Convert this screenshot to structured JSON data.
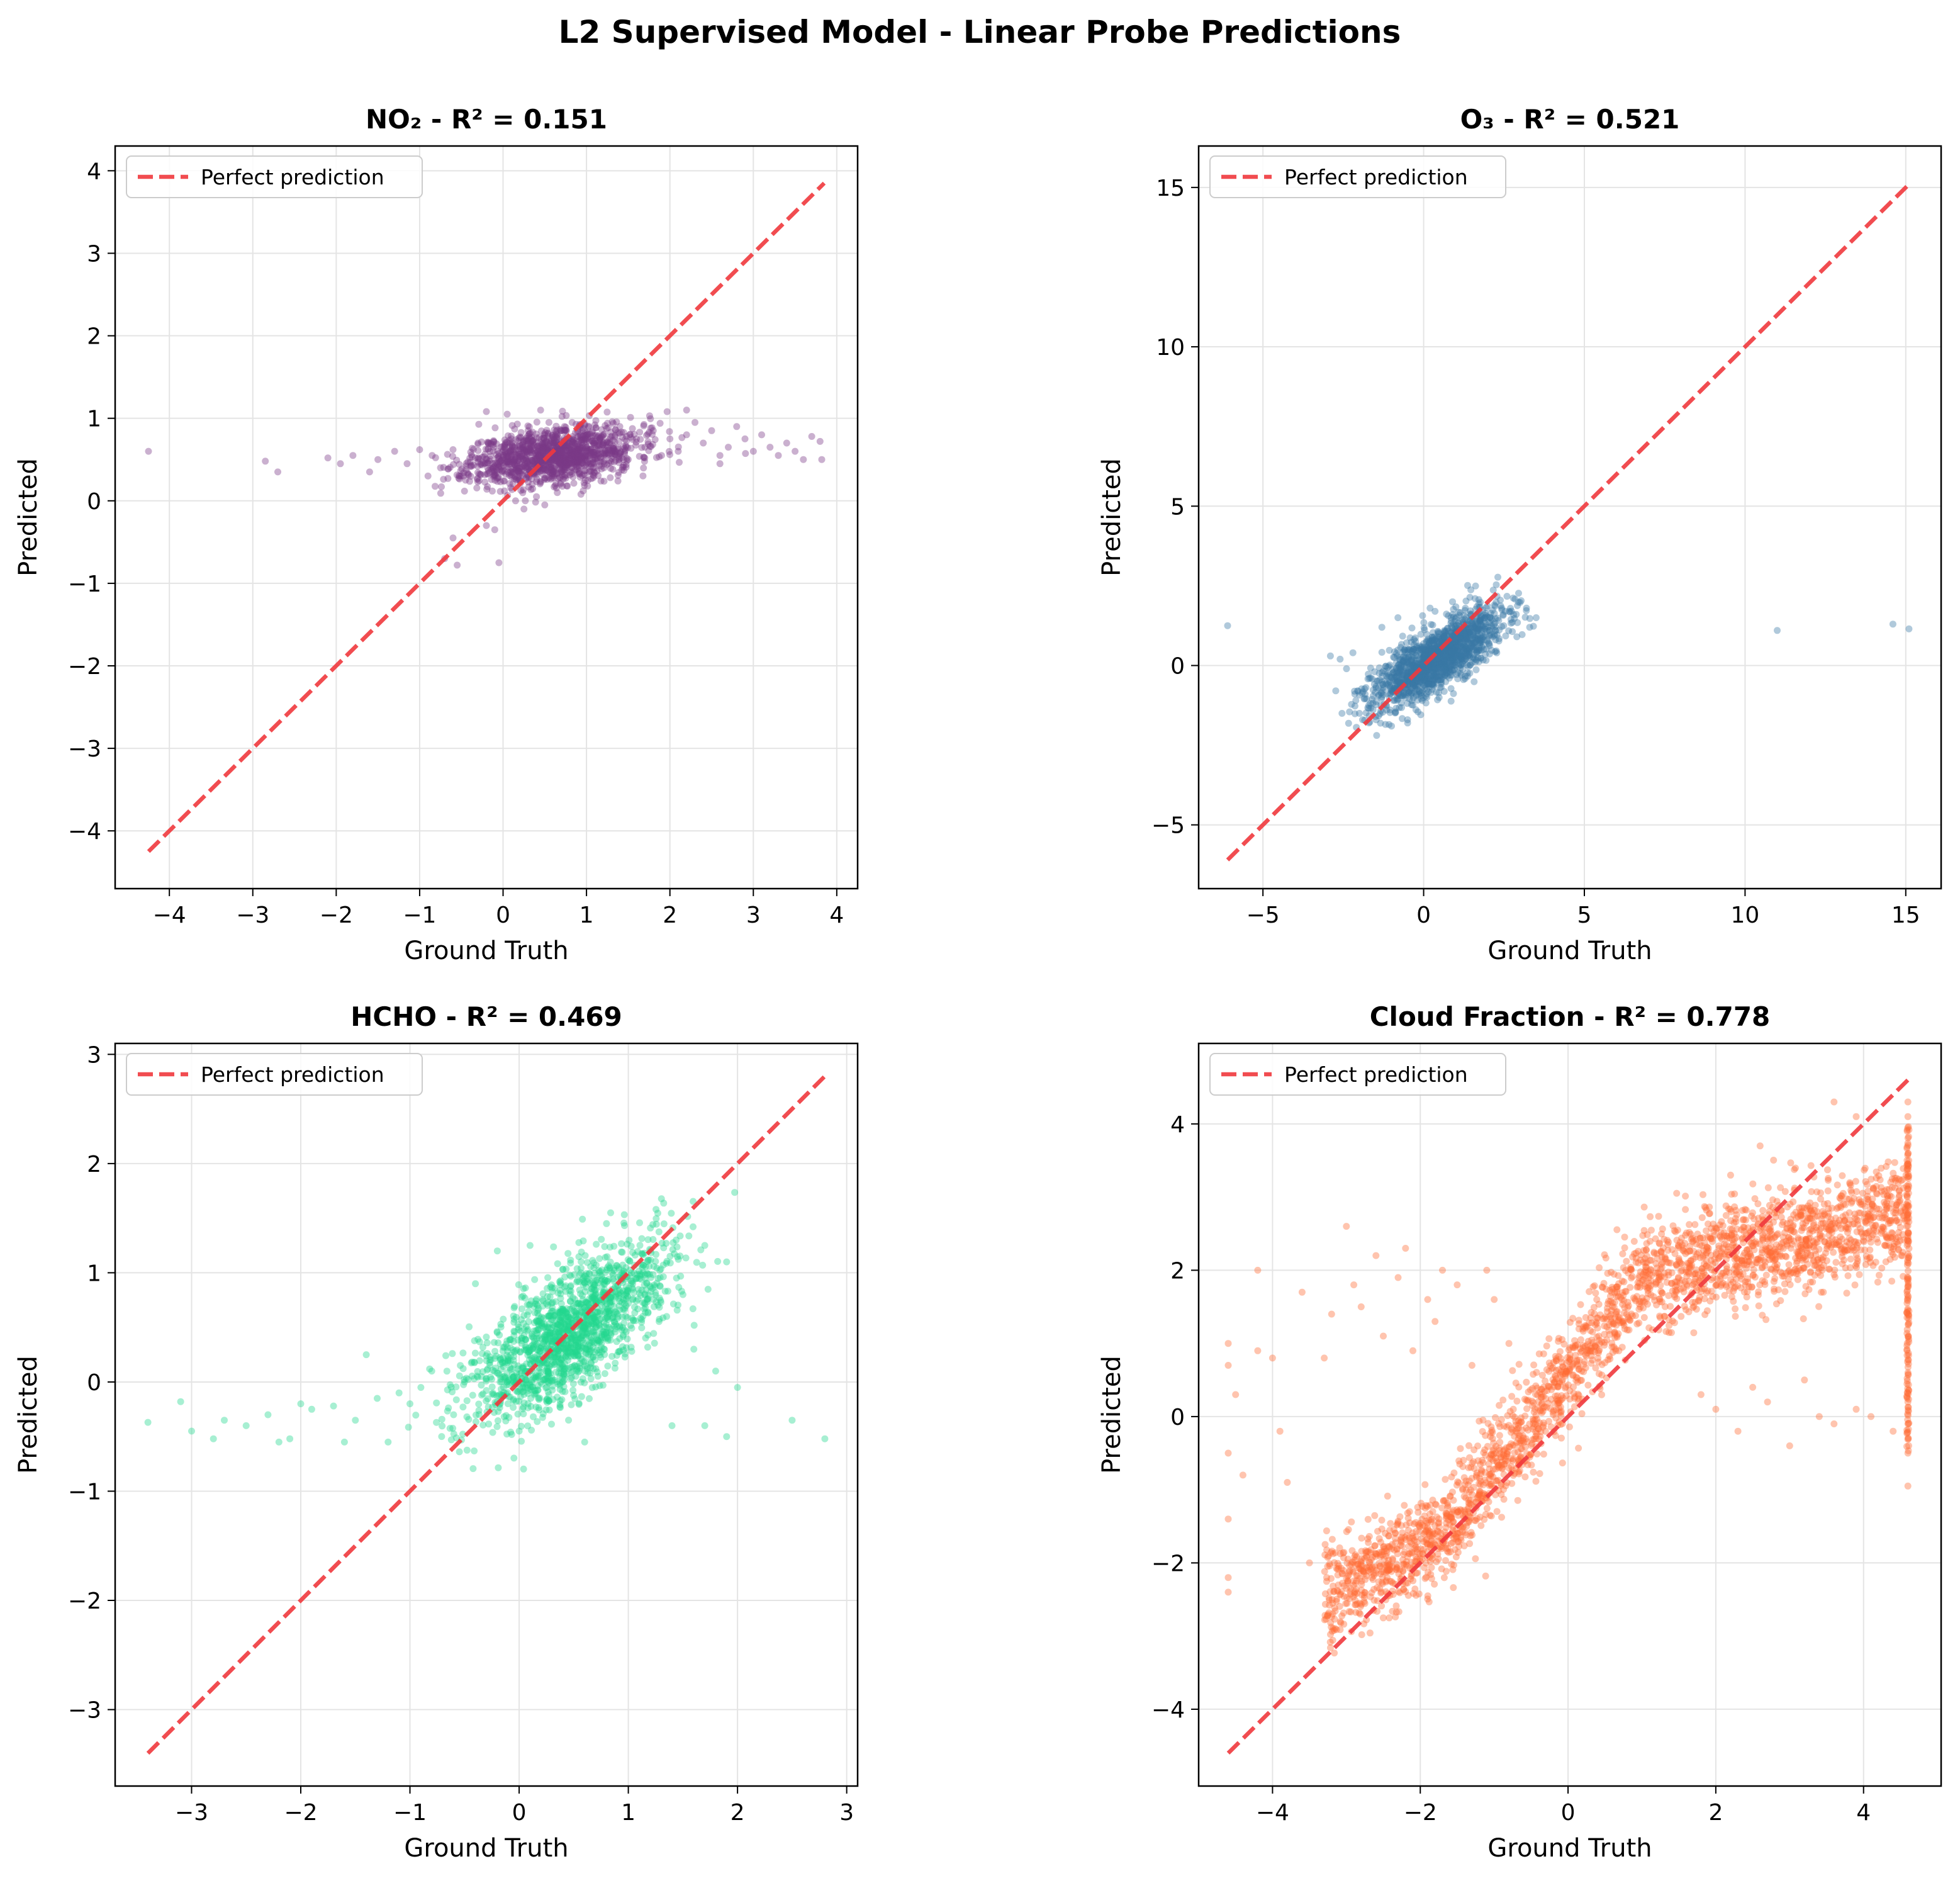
{
  "figure_title": "L2 Supervised Model - Linear Probe Predictions",
  "chart_data": [
    {
      "type": "scatter",
      "title": "NO₂ - R² = 0.151",
      "xlabel": "Ground Truth",
      "ylabel": "Predicted",
      "xlim": [
        -4.65,
        4.25
      ],
      "ylim": [
        -4.7,
        4.3
      ],
      "xticks": [
        -4,
        -3,
        -2,
        -1,
        0,
        1,
        2,
        3,
        4
      ],
      "yticks": [
        -4,
        -3,
        -2,
        -1,
        0,
        1,
        2,
        3,
        4
      ],
      "xtick_labels": [
        "−4",
        "−3",
        "−2",
        "−1",
        "0",
        "1",
        "2",
        "3",
        "4"
      ],
      "ytick_labels": [
        "−4",
        "−3",
        "−2",
        "−1",
        "0",
        "1",
        "2",
        "3",
        "4"
      ],
      "grid": true,
      "color": "#7b3a86",
      "legend": {
        "label": "Perfect prediction",
        "position": "top-left"
      },
      "perfect_line": [
        -4.25,
        3.85
      ],
      "points": [
        [
          -4.25,
          0.6
        ],
        [
          -2.85,
          0.48
        ],
        [
          -2.7,
          0.35
        ],
        [
          -2.1,
          0.52
        ],
        [
          -1.95,
          0.45
        ],
        [
          -1.8,
          0.55
        ],
        [
          -1.6,
          0.35
        ],
        [
          -1.5,
          0.5
        ],
        [
          -1.3,
          0.6
        ],
        [
          -1.15,
          0.45
        ],
        [
          -1.0,
          0.62
        ],
        [
          -0.9,
          0.3
        ],
        [
          -0.7,
          -0.7
        ],
        [
          -0.6,
          -0.45
        ],
        [
          -0.55,
          -0.78
        ],
        [
          -0.2,
          -0.3
        ],
        [
          -0.05,
          -0.75
        ],
        [
          -0.1,
          -0.35
        ],
        [
          -0.85,
          0.55
        ],
        [
          -0.75,
          0.4
        ],
        [
          -0.6,
          0.62
        ],
        [
          -0.45,
          0.25
        ],
        [
          -0.3,
          0.7
        ],
        [
          -0.2,
          0.5
        ],
        [
          -0.1,
          0.3
        ],
        [
          0.0,
          0.55
        ],
        [
          0.1,
          0.75
        ],
        [
          0.2,
          0.4
        ],
        [
          0.3,
          0.85
        ],
        [
          0.35,
          0.2
        ],
        [
          0.45,
          0.6
        ],
        [
          0.55,
          0.95
        ],
        [
          0.6,
          0.35
        ],
        [
          0.7,
          0.7
        ],
        [
          0.8,
          0.5
        ],
        [
          0.9,
          0.85
        ],
        [
          1.0,
          0.65
        ],
        [
          1.1,
          0.4
        ],
        [
          1.2,
          0.8
        ],
        [
          1.3,
          0.6
        ],
        [
          1.4,
          0.9
        ],
        [
          1.5,
          0.5
        ],
        [
          1.6,
          0.75
        ],
        [
          1.7,
          0.65
        ],
        [
          1.8,
          0.85
        ],
        [
          1.9,
          0.55
        ],
        [
          2.0,
          0.75
        ],
        [
          2.1,
          0.6
        ],
        [
          2.2,
          0.8
        ],
        [
          2.3,
          0.95
        ],
        [
          2.4,
          0.7
        ],
        [
          2.5,
          0.85
        ],
        [
          2.6,
          0.55
        ],
        [
          2.7,
          0.65
        ],
        [
          2.8,
          0.9
        ],
        [
          2.9,
          0.75
        ],
        [
          3.0,
          0.6
        ],
        [
          3.1,
          0.8
        ],
        [
          3.2,
          0.65
        ],
        [
          3.3,
          0.55
        ],
        [
          3.4,
          0.7
        ],
        [
          3.5,
          0.6
        ],
        [
          3.6,
          0.5
        ],
        [
          3.7,
          0.78
        ],
        [
          3.8,
          0.72
        ],
        [
          3.82,
          0.5
        ],
        [
          0.15,
          0.0
        ],
        [
          0.25,
          -0.1
        ],
        [
          0.4,
          0.05
        ],
        [
          0.5,
          -0.05
        ],
        [
          0.65,
          0.1
        ],
        [
          0.05,
          1.05
        ],
        [
          0.45,
          1.1
        ],
        [
          2.2,
          1.1
        ],
        [
          2.6,
          0.45
        ]
      ],
      "cloud": {
        "cx": 0.6,
        "cy": 0.55,
        "sx": 0.5,
        "sy": 0.18,
        "rho": 0.35,
        "n": 1300,
        "seed": 11
      }
    },
    {
      "type": "scatter",
      "title": "O₃ - R² = 0.521",
      "xlabel": "Ground Truth",
      "ylabel": "Predicted",
      "xlim": [
        -7.0,
        16.1
      ],
      "ylim": [
        -7.0,
        16.3
      ],
      "xticks": [
        -5,
        0,
        5,
        10,
        15
      ],
      "yticks": [
        -5,
        0,
        5,
        10,
        15
      ],
      "xtick_labels": [
        "−5",
        "0",
        "5",
        "10",
        "15"
      ],
      "ytick_labels": [
        "−5",
        "0",
        "5",
        "10",
        "15"
      ],
      "grid": true,
      "color": "#3a78a4",
      "legend": {
        "label": "Perfect prediction",
        "position": "top-left"
      },
      "perfect_line": [
        -6.1,
        15.1
      ],
      "points": [
        [
          -6.1,
          1.25
        ],
        [
          11.0,
          1.1
        ],
        [
          14.6,
          1.3
        ],
        [
          15.1,
          1.15
        ],
        [
          -2.6,
          0.2
        ],
        [
          -2.4,
          -0.1
        ],
        [
          -2.2,
          0.4
        ],
        [
          -2.0,
          -1.5
        ],
        [
          -1.9,
          -1.7
        ],
        [
          -1.7,
          -1.8
        ],
        [
          -1.5,
          -1.6
        ],
        [
          -1.3,
          1.2
        ],
        [
          -0.8,
          1.5
        ],
        [
          0.2,
          1.8
        ],
        [
          0.9,
          2.0
        ],
        [
          1.6,
          2.1
        ],
        [
          2.2,
          1.9
        ],
        [
          2.8,
          1.6
        ],
        [
          3.2,
          1.8
        ],
        [
          3.5,
          1.5
        ],
        [
          3.3,
          1.2
        ],
        [
          2.9,
          0.9
        ],
        [
          -2.9,
          0.3
        ],
        [
          -1.0,
          -1.9
        ],
        [
          -0.5,
          -1.7
        ]
      ],
      "cloud": {
        "cx": 0.4,
        "cy": 0.2,
        "sx": 1.0,
        "sy": 0.75,
        "rho": 0.75,
        "n": 1500,
        "seed": 23
      }
    },
    {
      "type": "scatter",
      "title": "HCHO - R² = 0.469",
      "xlabel": "Ground Truth",
      "ylabel": "Predicted",
      "xlim": [
        -3.7,
        3.1
      ],
      "ylim": [
        -3.7,
        3.1
      ],
      "xticks": [
        -3,
        -2,
        -1,
        0,
        1,
        2,
        3
      ],
      "yticks": [
        -3,
        -2,
        -1,
        0,
        1,
        2,
        3
      ],
      "xtick_labels": [
        "−3",
        "−2",
        "−1",
        "0",
        "1",
        "2",
        "3"
      ],
      "ytick_labels": [
        "−3",
        "−2",
        "−1",
        "0",
        "1",
        "2",
        "3"
      ],
      "grid": true,
      "color": "#22d68e",
      "legend": {
        "label": "Perfect prediction",
        "position": "top-left"
      },
      "perfect_line": [
        -3.4,
        2.8
      ],
      "points": [
        [
          -3.4,
          -0.37
        ],
        [
          -3.1,
          -0.18
        ],
        [
          -3.0,
          -0.45
        ],
        [
          -2.8,
          -0.52
        ],
        [
          -2.7,
          -0.35
        ],
        [
          -2.5,
          -0.4
        ],
        [
          -2.3,
          -0.3
        ],
        [
          -2.2,
          -0.55
        ],
        [
          -2.1,
          -0.52
        ],
        [
          -2.0,
          -0.2
        ],
        [
          -1.9,
          -0.25
        ],
        [
          -1.7,
          -0.22
        ],
        [
          -1.6,
          -0.55
        ],
        [
          -1.5,
          -0.35
        ],
        [
          -1.4,
          0.25
        ],
        [
          -1.3,
          -0.15
        ],
        [
          -1.2,
          -0.55
        ],
        [
          -1.1,
          -0.1
        ],
        [
          -1.0,
          -0.2
        ],
        [
          -0.9,
          -0.05
        ],
        [
          -0.8,
          0.1
        ],
        [
          -0.6,
          -0.3
        ],
        [
          -0.5,
          0.0
        ],
        [
          -0.4,
          0.9
        ],
        [
          -0.2,
          1.2
        ],
        [
          0.1,
          1.25
        ],
        [
          0.0,
          -0.45
        ],
        [
          0.6,
          -0.55
        ],
        [
          1.4,
          -0.4
        ],
        [
          1.7,
          -0.4
        ],
        [
          1.9,
          -0.5
        ],
        [
          2.0,
          -0.05
        ],
        [
          2.5,
          -0.35
        ],
        [
          2.8,
          -0.52
        ],
        [
          1.8,
          0.1
        ],
        [
          1.7,
          1.25
        ],
        [
          1.9,
          1.1
        ],
        [
          1.5,
          0.8
        ],
        [
          1.6,
          0.3
        ],
        [
          0.8,
          1.45
        ]
      ],
      "cloud": {
        "cx": 0.45,
        "cy": 0.45,
        "sx": 0.45,
        "sy": 0.4,
        "rho": 0.7,
        "n": 1600,
        "seed": 37
      }
    },
    {
      "type": "scatter",
      "title": "Cloud Fraction - R² = 0.778",
      "xlabel": "Ground Truth",
      "ylabel": "Predicted",
      "xlim": [
        -5.0,
        5.05
      ],
      "ylim": [
        -5.05,
        5.1
      ],
      "xticks": [
        -4,
        -2,
        0,
        2,
        4
      ],
      "yticks": [
        -4,
        -2,
        0,
        2,
        4
      ],
      "xtick_labels": [
        "−4",
        "−2",
        "0",
        "2",
        "4"
      ],
      "ytick_labels": [
        "−4",
        "−2",
        "0",
        "2",
        "4"
      ],
      "grid": true,
      "color": "#ff6b35",
      "legend": {
        "label": "Perfect prediction",
        "position": "top-left"
      },
      "perfect_line": [
        -4.6,
        4.6
      ],
      "points": [
        [
          -4.6,
          1.0
        ],
        [
          -4.6,
          0.7
        ],
        [
          -4.6,
          -0.5
        ],
        [
          -4.6,
          -1.4
        ],
        [
          -4.6,
          -2.2
        ],
        [
          -4.6,
          -2.4
        ],
        [
          -4.5,
          0.3
        ],
        [
          -4.4,
          -0.8
        ],
        [
          -4.2,
          2.0
        ],
        [
          -4.2,
          0.9
        ],
        [
          -4.0,
          0.8
        ],
        [
          -3.9,
          -0.2
        ],
        [
          -3.8,
          -0.9
        ],
        [
          -3.6,
          1.7
        ],
        [
          -3.5,
          -2.0
        ],
        [
          -3.3,
          0.8
        ],
        [
          -3.2,
          1.4
        ],
        [
          -3.0,
          2.6
        ],
        [
          -2.9,
          1.8
        ],
        [
          -2.8,
          1.5
        ],
        [
          -2.6,
          2.2
        ],
        [
          -2.5,
          1.1
        ],
        [
          -2.3,
          1.9
        ],
        [
          -2.2,
          2.3
        ],
        [
          -2.1,
          0.9
        ],
        [
          -1.9,
          1.6
        ],
        [
          -1.8,
          1.3
        ],
        [
          -1.7,
          2.0
        ],
        [
          -1.5,
          1.8
        ],
        [
          -1.3,
          0.7
        ],
        [
          -1.1,
          2.0
        ],
        [
          -1.0,
          1.6
        ],
        [
          -0.8,
          1.0
        ],
        [
          1.8,
          0.3
        ],
        [
          2.0,
          0.1
        ],
        [
          2.3,
          -0.2
        ],
        [
          2.5,
          0.4
        ],
        [
          2.7,
          0.2
        ],
        [
          3.0,
          -0.4
        ],
        [
          3.2,
          0.5
        ],
        [
          3.4,
          0.0
        ],
        [
          3.6,
          -0.1
        ],
        [
          3.9,
          0.1
        ],
        [
          4.1,
          0.0
        ],
        [
          4.4,
          -0.2
        ],
        [
          4.6,
          -0.95
        ],
        [
          4.6,
          -0.5
        ],
        [
          4.6,
          0.2
        ],
        [
          4.6,
          4.3
        ],
        [
          4.6,
          4.1
        ],
        [
          3.6,
          4.3
        ],
        [
          3.9,
          4.1
        ],
        [
          2.6,
          3.7
        ],
        [
          2.2,
          3.3
        ]
      ],
      "cloud": {
        "type": "curve",
        "n": 2600,
        "seed": 53
      },
      "edge_column": {
        "x": 4.6,
        "ymin": -0.5,
        "ymax": 4.0,
        "n": 160
      }
    }
  ]
}
